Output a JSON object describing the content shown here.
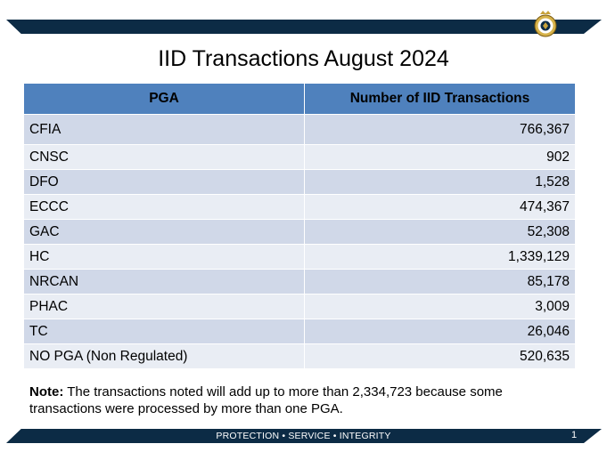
{
  "slide": {
    "title": "IID Transactions August 2024",
    "footer_text": "PROTECTION • SERVICE • INTEGRITY",
    "page_number": "1"
  },
  "table": {
    "headers": [
      "PGA",
      "Number of IID Transactions"
    ],
    "rows": [
      {
        "pga": "CFIA",
        "count": "766,367"
      },
      {
        "pga": "CNSC",
        "count": "902"
      },
      {
        "pga": "DFO",
        "count": "1,528"
      },
      {
        "pga": "ECCC",
        "count": "474,367"
      },
      {
        "pga": "GAC",
        "count": "52,308"
      },
      {
        "pga": "HC",
        "count": "1,339,129"
      },
      {
        "pga": "NRCAN",
        "count": "85,178"
      },
      {
        "pga": "PHAC",
        "count": "3,009"
      },
      {
        "pga": "TC",
        "count": "26,046"
      },
      {
        "pga": "NO PGA (Non Regulated)",
        "count": "520,635"
      }
    ]
  },
  "note": {
    "label": "Note:",
    "text": " The transactions noted will add up to more than 2,334,723 because some transactions were processed by more than one PGA."
  },
  "colors": {
    "banner": "#0c2b45",
    "header_fill": "#4f81bd",
    "row_odd": "#d0d8e8",
    "row_even": "#e9edf4"
  },
  "icons": {
    "logo": "crest-logo-icon"
  }
}
